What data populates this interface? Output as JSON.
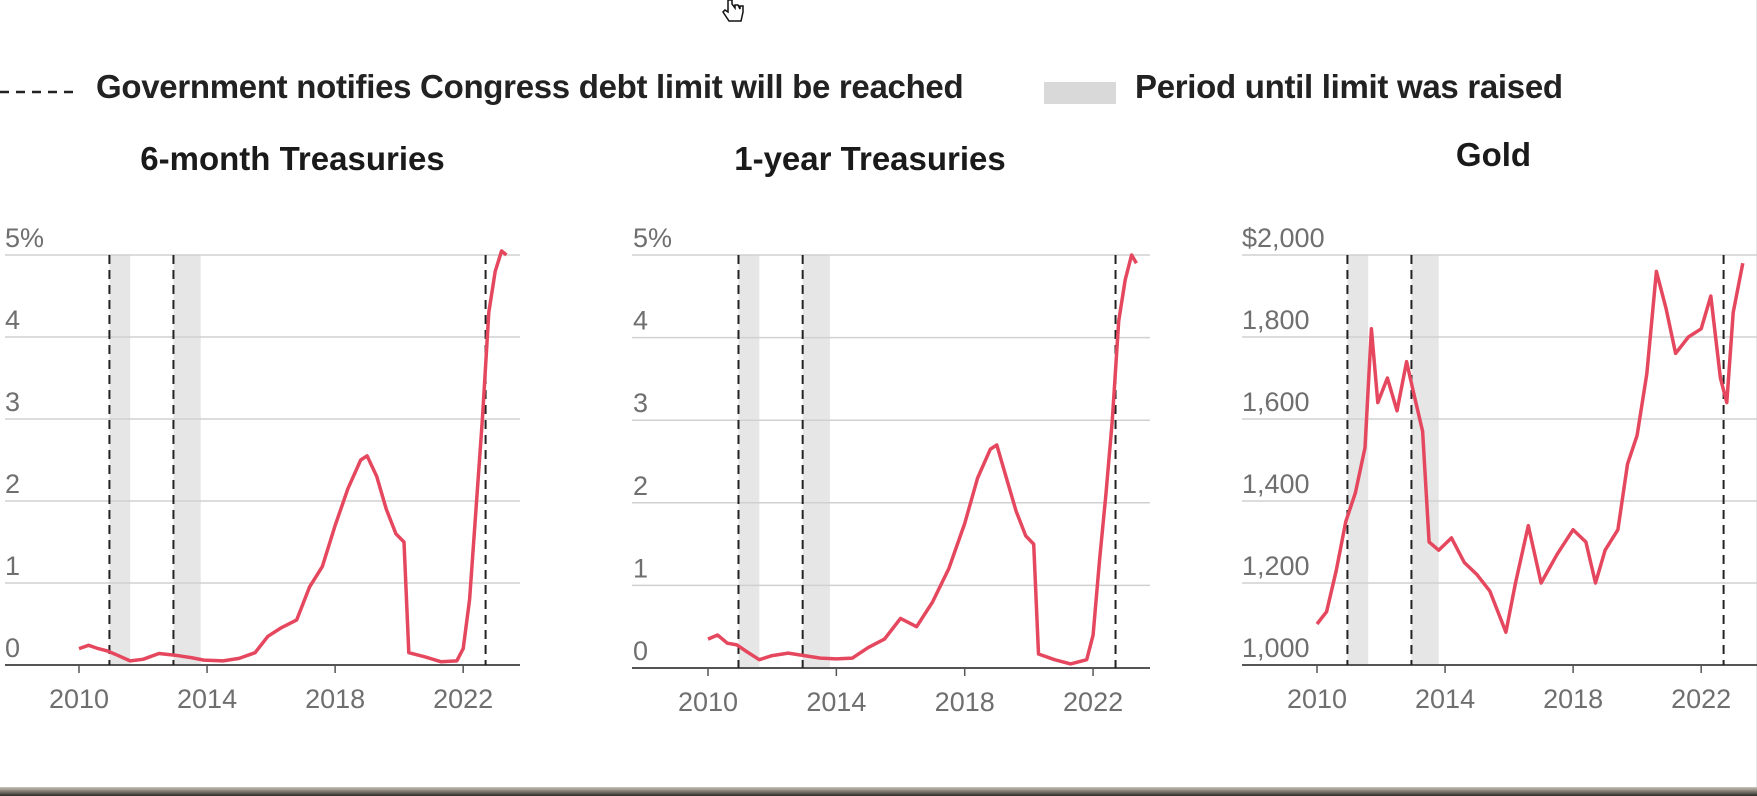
{
  "legend": {
    "notify_label": "Government notifies Congress debt limit will be reached",
    "period_label": "Period until limit was raised"
  },
  "colors": {
    "line": "#e5485e",
    "shade": "#e6e6e6",
    "grid": "#d0d0d0",
    "axis": "#555555",
    "text": "#6f6f6f"
  },
  "chart_data": [
    {
      "type": "line",
      "title": "6-month Treasuries",
      "xlabel": "",
      "ylabel": "",
      "xlim": [
        2010,
        2023.4
      ],
      "ylim": [
        0,
        5
      ],
      "yticks": [
        "0",
        "1",
        "2",
        "3",
        "4",
        "5%"
      ],
      "xticks": [
        "2010",
        "2014",
        "2018",
        "2022"
      ],
      "notify_dates": [
        2010.95,
        2012.95,
        2022.7
      ],
      "raised_periods": [
        [
          2010.95,
          2011.6
        ],
        [
          2012.95,
          2013.8
        ]
      ],
      "series": [
        {
          "x": [
            2010.0,
            2010.3,
            2010.6,
            2010.9,
            2011.2,
            2011.6,
            2012.0,
            2012.5,
            2013.0,
            2013.5,
            2013.9,
            2014.5,
            2015.0,
            2015.5,
            2015.9,
            2016.3,
            2016.8,
            2017.2,
            2017.6,
            2018.0,
            2018.4,
            2018.8,
            2019.0,
            2019.3,
            2019.6,
            2019.9,
            2020.15,
            2020.3,
            2020.8,
            2021.3,
            2021.8,
            2022.0,
            2022.2,
            2022.4,
            2022.6,
            2022.8,
            2023.0,
            2023.2,
            2023.35
          ],
          "y": [
            0.2,
            0.24,
            0.2,
            0.17,
            0.12,
            0.05,
            0.07,
            0.14,
            0.12,
            0.09,
            0.06,
            0.05,
            0.08,
            0.15,
            0.35,
            0.45,
            0.55,
            0.95,
            1.2,
            1.7,
            2.15,
            2.5,
            2.55,
            2.3,
            1.9,
            1.6,
            1.5,
            0.15,
            0.1,
            0.04,
            0.05,
            0.2,
            0.8,
            1.9,
            3.0,
            4.3,
            4.8,
            5.05,
            5.0
          ]
        }
      ]
    },
    {
      "type": "line",
      "title": "1-year Treasuries",
      "xlabel": "",
      "ylabel": "",
      "xlim": [
        2010,
        2023.4
      ],
      "ylim": [
        0,
        5
      ],
      "yticks": [
        "0",
        "1",
        "2",
        "3",
        "4",
        "5%"
      ],
      "xticks": [
        "2010",
        "2014",
        "2018",
        "2022"
      ],
      "notify_dates": [
        2010.95,
        2012.95,
        2022.7
      ],
      "raised_periods": [
        [
          2010.95,
          2011.6
        ],
        [
          2012.95,
          2013.8
        ]
      ],
      "series": [
        {
          "x": [
            2010.0,
            2010.3,
            2010.6,
            2010.9,
            2011.2,
            2011.6,
            2012.0,
            2012.5,
            2013.0,
            2013.5,
            2014.0,
            2014.5,
            2015.0,
            2015.5,
            2016.0,
            2016.5,
            2017.0,
            2017.5,
            2018.0,
            2018.4,
            2018.8,
            2019.0,
            2019.3,
            2019.6,
            2019.9,
            2020.15,
            2020.3,
            2020.8,
            2021.3,
            2021.8,
            2022.0,
            2022.2,
            2022.4,
            2022.6,
            2022.8,
            2023.0,
            2023.2,
            2023.35
          ],
          "y": [
            0.35,
            0.4,
            0.3,
            0.28,
            0.2,
            0.1,
            0.15,
            0.18,
            0.15,
            0.12,
            0.11,
            0.12,
            0.25,
            0.35,
            0.6,
            0.5,
            0.8,
            1.2,
            1.75,
            2.3,
            2.65,
            2.7,
            2.3,
            1.9,
            1.6,
            1.5,
            0.17,
            0.1,
            0.05,
            0.1,
            0.4,
            1.3,
            2.1,
            3.0,
            4.2,
            4.7,
            5.0,
            4.9
          ]
        }
      ]
    },
    {
      "type": "line",
      "title": "Gold",
      "xlabel": "",
      "ylabel": "",
      "xlim": [
        2010,
        2023.4
      ],
      "ylim": [
        1000,
        2000
      ],
      "yticks": [
        "1,000",
        "1,200",
        "1,400",
        "1,600",
        "1,800",
        "$2,000"
      ],
      "xticks": [
        "2010",
        "2014",
        "2018",
        "2022"
      ],
      "notify_dates": [
        2010.95,
        2012.95,
        2022.7
      ],
      "raised_periods": [
        [
          2010.95,
          2011.6
        ],
        [
          2012.95,
          2013.8
        ]
      ],
      "series": [
        {
          "x": [
            2010.0,
            2010.3,
            2010.6,
            2010.9,
            2011.2,
            2011.5,
            2011.7,
            2011.9,
            2012.2,
            2012.5,
            2012.8,
            2013.0,
            2013.3,
            2013.5,
            2013.8,
            2014.2,
            2014.6,
            2015.0,
            2015.4,
            2015.9,
            2016.2,
            2016.6,
            2017.0,
            2017.5,
            2018.0,
            2018.4,
            2018.7,
            2019.0,
            2019.4,
            2019.7,
            2020.0,
            2020.3,
            2020.6,
            2020.9,
            2021.2,
            2021.6,
            2022.0,
            2022.3,
            2022.6,
            2022.8,
            2023.0,
            2023.3
          ],
          "y": [
            1100,
            1130,
            1230,
            1350,
            1420,
            1530,
            1820,
            1640,
            1700,
            1620,
            1740,
            1670,
            1570,
            1300,
            1280,
            1310,
            1250,
            1220,
            1180,
            1080,
            1200,
            1340,
            1200,
            1270,
            1330,
            1300,
            1200,
            1280,
            1330,
            1490,
            1560,
            1710,
            1960,
            1870,
            1760,
            1800,
            1820,
            1900,
            1700,
            1640,
            1860,
            1980
          ]
        }
      ]
    }
  ]
}
